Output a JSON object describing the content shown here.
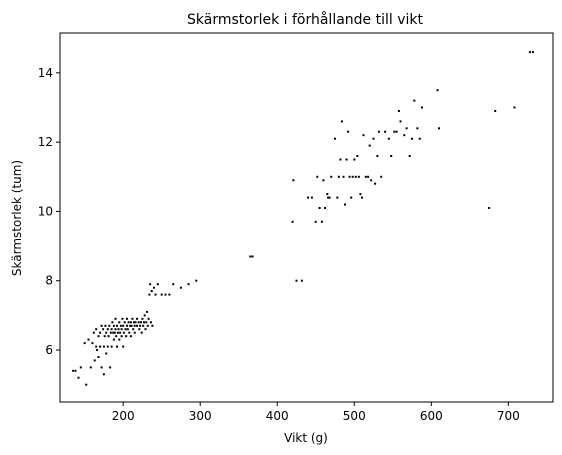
{
  "chart_data": {
    "type": "scatter",
    "title": "Skärmstorlek i förhållande till vikt",
    "xlabel": "Vikt (g)",
    "ylabel": "Skärmstorlek (tum)",
    "xlim": [
      118,
      758
    ],
    "ylim": [
      4.5,
      15.15
    ],
    "xticks": [
      200,
      300,
      400,
      500,
      600,
      700
    ],
    "yticks": [
      6,
      8,
      10,
      12,
      14
    ],
    "grid": false,
    "marker_color": "#000000",
    "series": [
      {
        "points": [
          [
            135,
            5.4
          ],
          [
            138,
            5.4
          ],
          [
            142,
            5.2
          ],
          [
            145,
            5.5
          ],
          [
            150,
            6.2
          ],
          [
            152,
            5.0
          ],
          [
            155,
            6.3
          ],
          [
            158,
            5.5
          ],
          [
            160,
            6.2
          ],
          [
            162,
            6.5
          ],
          [
            163,
            5.7
          ],
          [
            165,
            6.1
          ],
          [
            165,
            6.6
          ],
          [
            166,
            6.0
          ],
          [
            168,
            5.8
          ],
          [
            168,
            6.4
          ],
          [
            170,
            6.1
          ],
          [
            170,
            6.5
          ],
          [
            172,
            6.7
          ],
          [
            172,
            5.5
          ],
          [
            174,
            6.6
          ],
          [
            175,
            6.1
          ],
          [
            175,
            5.3
          ],
          [
            176,
            6.4
          ],
          [
            177,
            6.7
          ],
          [
            178,
            6.5
          ],
          [
            178,
            5.9
          ],
          [
            180,
            6.1
          ],
          [
            180,
            6.6
          ],
          [
            181,
            6.4
          ],
          [
            182,
            6.7
          ],
          [
            183,
            5.5
          ],
          [
            184,
            6.5
          ],
          [
            185,
            6.6
          ],
          [
            185,
            6.1
          ],
          [
            186,
            6.8
          ],
          [
            187,
            6.5
          ],
          [
            188,
            6.7
          ],
          [
            188,
            6.3
          ],
          [
            189,
            6.5
          ],
          [
            190,
            6.6
          ],
          [
            190,
            6.9
          ],
          [
            191,
            6.4
          ],
          [
            192,
            6.7
          ],
          [
            192,
            6.1
          ],
          [
            193,
            6.5
          ],
          [
            194,
            6.6
          ],
          [
            195,
            6.8
          ],
          [
            195,
            6.3
          ],
          [
            196,
            6.5
          ],
          [
            197,
            6.7
          ],
          [
            198,
            6.6
          ],
          [
            198,
            6.4
          ],
          [
            199,
            6.9
          ],
          [
            200,
            6.7
          ],
          [
            200,
            6.1
          ],
          [
            201,
            6.5
          ],
          [
            202,
            6.8
          ],
          [
            203,
            6.6
          ],
          [
            204,
            6.4
          ],
          [
            205,
            6.7
          ],
          [
            205,
            6.9
          ],
          [
            206,
            6.6
          ],
          [
            207,
            6.8
          ],
          [
            208,
            6.5
          ],
          [
            209,
            6.7
          ],
          [
            210,
            6.8
          ],
          [
            210,
            6.4
          ],
          [
            211,
            6.7
          ],
          [
            212,
            6.9
          ],
          [
            213,
            6.6
          ],
          [
            214,
            6.8
          ],
          [
            215,
            6.7
          ],
          [
            215,
            6.5
          ],
          [
            216,
            6.8
          ],
          [
            218,
            6.7
          ],
          [
            218,
            6.9
          ],
          [
            220,
            6.8
          ],
          [
            221,
            6.6
          ],
          [
            222,
            6.7
          ],
          [
            223,
            6.8
          ],
          [
            224,
            6.5
          ],
          [
            225,
            6.9
          ],
          [
            226,
            6.7
          ],
          [
            227,
            6.8
          ],
          [
            228,
            7.0
          ],
          [
            229,
            6.6
          ],
          [
            230,
            6.8
          ],
          [
            231,
            7.1
          ],
          [
            232,
            6.7
          ],
          [
            233,
            6.9
          ],
          [
            234,
            7.6
          ],
          [
            235,
            7.9
          ],
          [
            236,
            6.8
          ],
          [
            237,
            7.7
          ],
          [
            238,
            6.7
          ],
          [
            240,
            7.8
          ],
          [
            242,
            7.6
          ],
          [
            245,
            7.9
          ],
          [
            250,
            7.6
          ],
          [
            255,
            7.6
          ],
          [
            260,
            7.6
          ],
          [
            265,
            7.9
          ],
          [
            275,
            7.8
          ],
          [
            285,
            7.9
          ],
          [
            295,
            8.0
          ],
          [
            365,
            8.7
          ],
          [
            368,
            8.7
          ],
          [
            420,
            9.7
          ],
          [
            421,
            10.9
          ],
          [
            425,
            8.0
          ],
          [
            432,
            8.0
          ],
          [
            440,
            10.4
          ],
          [
            445,
            10.4
          ],
          [
            450,
            9.7
          ],
          [
            452,
            11.0
          ],
          [
            455,
            10.1
          ],
          [
            458,
            9.7
          ],
          [
            460,
            10.9
          ],
          [
            462,
            10.1
          ],
          [
            465,
            10.5
          ],
          [
            466,
            10.4
          ],
          [
            468,
            10.4
          ],
          [
            470,
            11.0
          ],
          [
            475,
            12.1
          ],
          [
            478,
            10.4
          ],
          [
            480,
            11.0
          ],
          [
            482,
            11.5
          ],
          [
            484,
            12.6
          ],
          [
            486,
            11.0
          ],
          [
            488,
            10.2
          ],
          [
            490,
            11.5
          ],
          [
            492,
            12.3
          ],
          [
            494,
            11.0
          ],
          [
            496,
            10.4
          ],
          [
            498,
            11.0
          ],
          [
            500,
            11.5
          ],
          [
            502,
            11.0
          ],
          [
            504,
            11.6
          ],
          [
            506,
            11.0
          ],
          [
            508,
            10.5
          ],
          [
            510,
            10.4
          ],
          [
            512,
            12.2
          ],
          [
            515,
            11.0
          ],
          [
            518,
            11.0
          ],
          [
            520,
            11.9
          ],
          [
            522,
            10.9
          ],
          [
            525,
            12.1
          ],
          [
            527,
            10.8
          ],
          [
            530,
            11.6
          ],
          [
            532,
            12.3
          ],
          [
            535,
            11.0
          ],
          [
            540,
            12.3
          ],
          [
            545,
            12.1
          ],
          [
            548,
            11.6
          ],
          [
            552,
            12.3
          ],
          [
            555,
            12.3
          ],
          [
            558,
            12.9
          ],
          [
            560,
            12.6
          ],
          [
            565,
            12.2
          ],
          [
            568,
            12.4
          ],
          [
            572,
            11.6
          ],
          [
            575,
            12.1
          ],
          [
            578,
            13.2
          ],
          [
            582,
            12.4
          ],
          [
            585,
            12.1
          ],
          [
            588,
            13.0
          ],
          [
            608,
            13.5
          ],
          [
            610,
            12.4
          ],
          [
            675,
            10.1
          ],
          [
            683,
            12.9
          ],
          [
            708,
            13.0
          ],
          [
            728,
            14.6
          ],
          [
            732,
            14.6
          ]
        ]
      }
    ]
  }
}
